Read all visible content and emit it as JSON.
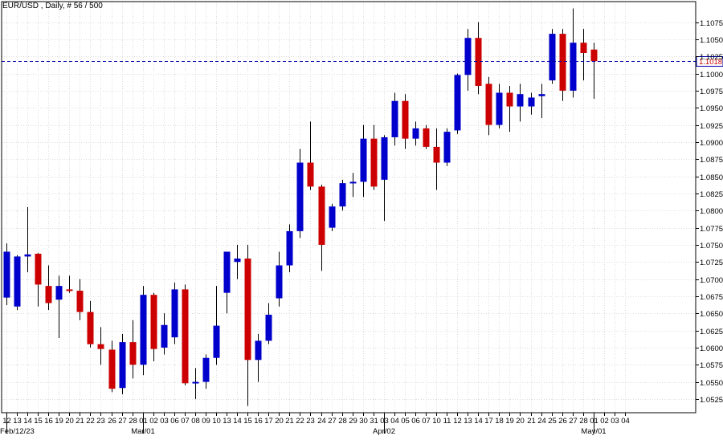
{
  "header": {
    "title": "EUR/USD , Daily, # 56 / 500"
  },
  "colors": {
    "bull": "#0000cc",
    "bear": "#cc0000",
    "wick": "#000000",
    "grid": "#dcdcdc",
    "current_line": "#0000aa",
    "current_label_text": "#cc0000"
  },
  "chart_data": {
    "type": "candlestick",
    "title": "EUR/USD , Daily, # 56 / 500",
    "ylim": [
      1.0505,
      1.1105
    ],
    "y_ticks": [
      "1.0525",
      "1.0550",
      "1.0575",
      "1.0600",
      "1.0625",
      "1.0650",
      "1.0675",
      "1.0700",
      "1.0725",
      "1.0750",
      "1.0775",
      "1.0800",
      "1.0825",
      "1.0850",
      "1.0875",
      "1.0900",
      "1.0925",
      "1.0950",
      "1.0975",
      "1.1000",
      "1.1025",
      "1.1050",
      "1.1075"
    ],
    "current_price": "1.1018",
    "grid": true,
    "x_tick_labels": [
      "12",
      "13",
      "14",
      "15",
      "16",
      "19",
      "20",
      "21",
      "22",
      "23",
      "26",
      "27",
      "28",
      "01",
      "02",
      "03",
      "06",
      "07",
      "08",
      "09",
      "10",
      "13",
      "14",
      "15",
      "16",
      "17",
      "20",
      "21",
      "22",
      "23",
      "24",
      "27",
      "28",
      "29",
      "30",
      "31",
      "03",
      "04",
      "05",
      "06",
      "07",
      "10",
      "11",
      "12",
      "13",
      "14",
      "17",
      "18",
      "19",
      "20",
      "21",
      "24",
      "25",
      "26",
      "27",
      "28",
      "01",
      "02",
      "03",
      "04"
    ],
    "x_month_labels": [
      {
        "index": 0,
        "label": "Feb/12/23"
      },
      {
        "index": 13,
        "label": "Mar/01"
      },
      {
        "index": 36,
        "label": "Apr/02"
      },
      {
        "index": 56,
        "label": "May/01"
      }
    ],
    "candles": [
      {
        "date": "Feb/12",
        "open": 1.0673,
        "high": 1.0752,
        "low": 1.0662,
        "close": 1.074
      },
      {
        "date": "Feb/13",
        "open": 1.066,
        "high": 1.0735,
        "low": 1.0655,
        "close": 1.0733
      },
      {
        "date": "Feb/14",
        "open": 1.0733,
        "high": 1.0805,
        "low": 1.071,
        "close": 1.0736
      },
      {
        "date": "Feb/15",
        "open": 1.0737,
        "high": 1.0738,
        "low": 1.066,
        "close": 1.0692
      },
      {
        "date": "Feb/16",
        "open": 1.069,
        "high": 1.072,
        "low": 1.0655,
        "close": 1.0665
      },
      {
        "date": "Feb/19",
        "open": 1.067,
        "high": 1.0705,
        "low": 1.0614,
        "close": 1.069
      },
      {
        "date": "Feb/20",
        "open": 1.0685,
        "high": 1.0705,
        "low": 1.068,
        "close": 1.0683
      },
      {
        "date": "Feb/21",
        "open": 1.0683,
        "high": 1.07,
        "low": 1.064,
        "close": 1.0652
      },
      {
        "date": "Feb/22",
        "open": 1.0652,
        "high": 1.0668,
        "low": 1.06,
        "close": 1.0605
      },
      {
        "date": "Feb/23",
        "open": 1.0605,
        "high": 1.063,
        "low": 1.0575,
        "close": 1.0598
      },
      {
        "date": "Feb/26",
        "open": 1.0597,
        "high": 1.061,
        "low": 1.0535,
        "close": 1.054
      },
      {
        "date": "Feb/27",
        "open": 1.0541,
        "high": 1.062,
        "low": 1.0532,
        "close": 1.0608
      },
      {
        "date": "Feb/28",
        "open": 1.0608,
        "high": 1.064,
        "low": 1.0555,
        "close": 1.0575
      },
      {
        "date": "Mar/01",
        "open": 1.0575,
        "high": 1.069,
        "low": 1.056,
        "close": 1.0677
      },
      {
        "date": "Mar/02",
        "open": 1.0677,
        "high": 1.068,
        "low": 1.058,
        "close": 1.0598
      },
      {
        "date": "Mar/03",
        "open": 1.06,
        "high": 1.065,
        "low": 1.059,
        "close": 1.0633
      },
      {
        "date": "Mar/06",
        "open": 1.0615,
        "high": 1.0695,
        "low": 1.0605,
        "close": 1.0685
      },
      {
        "date": "Mar/07",
        "open": 1.0685,
        "high": 1.0692,
        "low": 1.0545,
        "close": 1.0548
      },
      {
        "date": "Mar/08",
        "open": 1.0548,
        "high": 1.057,
        "low": 1.0525,
        "close": 1.055
      },
      {
        "date": "Mar/09",
        "open": 1.055,
        "high": 1.059,
        "low": 1.054,
        "close": 1.0585
      },
      {
        "date": "Mar/10",
        "open": 1.0585,
        "high": 1.069,
        "low": 1.0575,
        "close": 1.0632
      },
      {
        "date": "Mar/13",
        "open": 1.068,
        "high": 1.074,
        "low": 1.065,
        "close": 1.074
      },
      {
        "date": "Mar/14",
        "open": 1.0725,
        "high": 1.075,
        "low": 1.07,
        "close": 1.073
      },
      {
        "date": "Mar/15",
        "open": 1.073,
        "high": 1.075,
        "low": 1.0515,
        "close": 1.0582
      },
      {
        "date": "Mar/16",
        "open": 1.0582,
        "high": 1.062,
        "low": 1.055,
        "close": 1.061
      },
      {
        "date": "Mar/17",
        "open": 1.061,
        "high": 1.0665,
        "low": 1.0605,
        "close": 1.0648
      },
      {
        "date": "Mar/20",
        "open": 1.0672,
        "high": 1.074,
        "low": 1.066,
        "close": 1.072
      },
      {
        "date": "Mar/21",
        "open": 1.072,
        "high": 1.078,
        "low": 1.071,
        "close": 1.077
      },
      {
        "date": "Mar/22",
        "open": 1.077,
        "high": 1.089,
        "low": 1.076,
        "close": 1.087
      },
      {
        "date": "Mar/23",
        "open": 1.087,
        "high": 1.093,
        "low": 1.083,
        "close": 1.0835
      },
      {
        "date": "Mar/24",
        "open": 1.0835,
        "high": 1.0838,
        "low": 1.0712,
        "close": 1.075
      },
      {
        "date": "Mar/27",
        "open": 1.0775,
        "high": 1.081,
        "low": 1.077,
        "close": 1.0806
      },
      {
        "date": "Mar/28",
        "open": 1.0806,
        "high": 1.0845,
        "low": 1.08,
        "close": 1.084
      },
      {
        "date": "Mar/29",
        "open": 1.084,
        "high": 1.0855,
        "low": 1.082,
        "close": 1.0842
      },
      {
        "date": "Mar/30",
        "open": 1.0842,
        "high": 1.0925,
        "low": 1.082,
        "close": 1.0905
      },
      {
        "date": "Mar/31",
        "open": 1.0905,
        "high": 1.0925,
        "low": 1.083,
        "close": 1.0835
      },
      {
        "date": "Apr/03",
        "open": 1.0845,
        "high": 1.091,
        "low": 1.0785,
        "close": 1.0907
      },
      {
        "date": "Apr/04",
        "open": 1.0907,
        "high": 1.0972,
        "low": 1.0895,
        "close": 1.096
      },
      {
        "date": "Apr/05",
        "open": 1.096,
        "high": 1.097,
        "low": 1.089,
        "close": 1.0905
      },
      {
        "date": "Apr/06",
        "open": 1.0905,
        "high": 1.093,
        "low": 1.0895,
        "close": 1.092
      },
      {
        "date": "Apr/07",
        "open": 1.092,
        "high": 1.0925,
        "low": 1.089,
        "close": 1.0893
      },
      {
        "date": "Apr/10",
        "open": 1.0893,
        "high": 1.092,
        "low": 1.083,
        "close": 1.087
      },
      {
        "date": "Apr/11",
        "open": 1.087,
        "high": 1.092,
        "low": 1.0865,
        "close": 1.0915
      },
      {
        "date": "Apr/12",
        "open": 1.0917,
        "high": 1.1,
        "low": 1.0912,
        "close": 1.0998
      },
      {
        "date": "Apr/13",
        "open": 1.0998,
        "high": 1.1065,
        "low": 1.0975,
        "close": 1.1052
      },
      {
        "date": "Apr/14",
        "open": 1.1052,
        "high": 1.1075,
        "low": 1.097,
        "close": 1.0982
      },
      {
        "date": "Apr/17",
        "open": 1.0985,
        "high": 1.0995,
        "low": 1.091,
        "close": 1.0925
      },
      {
        "date": "Apr/18",
        "open": 1.0925,
        "high": 1.0985,
        "low": 1.092,
        "close": 1.0972
      },
      {
        "date": "Apr/19",
        "open": 1.0972,
        "high": 1.0982,
        "low": 1.0915,
        "close": 1.0952
      },
      {
        "date": "Apr/20",
        "open": 1.0952,
        "high": 1.0985,
        "low": 1.093,
        "close": 1.097
      },
      {
        "date": "Apr/21",
        "open": 1.0952,
        "high": 1.0972,
        "low": 1.094,
        "close": 1.0965
      },
      {
        "date": "Apr/24",
        "open": 1.0967,
        "high": 1.0985,
        "low": 1.0935,
        "close": 1.097
      },
      {
        "date": "Apr/25",
        "open": 1.099,
        "high": 1.1065,
        "low": 1.0985,
        "close": 1.1058
      },
      {
        "date": "Apr/26",
        "open": 1.1058,
        "high": 1.1065,
        "low": 1.096,
        "close": 1.0975
      },
      {
        "date": "Apr/27",
        "open": 1.0975,
        "high": 1.1095,
        "low": 1.0965,
        "close": 1.1045
      },
      {
        "date": "Apr/28",
        "open": 1.1045,
        "high": 1.1065,
        "low": 1.099,
        "close": 1.103
      },
      {
        "date": "May/01",
        "open": 1.1035,
        "high": 1.1045,
        "low": 1.0963,
        "close": 1.1018
      }
    ]
  }
}
